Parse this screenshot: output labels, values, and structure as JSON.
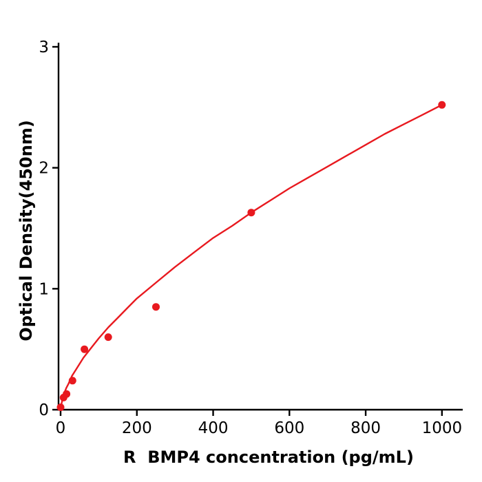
{
  "figure": {
    "background": "#ffffff"
  },
  "chart_data": {
    "type": "scatter",
    "subtype": "standard-curve-with-fit",
    "xlabel": "R  BMP4 concentration (pg/mL)",
    "ylabel": "Optical Density(450nm)",
    "xlim": [
      0,
      1040
    ],
    "ylim": [
      0,
      3
    ],
    "x_ticks": [
      0,
      200,
      400,
      600,
      800,
      1000
    ],
    "y_ticks": [
      0,
      1,
      2,
      3
    ],
    "grid": false,
    "legend": "none",
    "marker": "circle",
    "marker_radius": 5.5,
    "point_color": "#e8191f",
    "curve_color": "#e8191f",
    "axis_color": "#000000",
    "series": [
      {
        "name": "BMP4 standard points",
        "x": [
          0,
          7.8,
          15.6,
          31.25,
          62.5,
          125,
          250,
          500,
          1000
        ],
        "y": [
          0.02,
          0.1,
          0.13,
          0.24,
          0.5,
          0.6,
          0.85,
          1.63,
          2.52
        ]
      }
    ],
    "fit_curve": {
      "name": "fitted curve",
      "x": [
        0,
        5,
        10,
        15,
        20,
        30,
        40,
        50,
        60,
        80,
        100,
        125,
        150,
        175,
        200,
        250,
        300,
        350,
        400,
        450,
        500,
        550,
        600,
        650,
        700,
        750,
        800,
        850,
        900,
        950,
        1000
      ],
      "y": [
        0.01,
        0.09,
        0.14,
        0.18,
        0.21,
        0.28,
        0.33,
        0.38,
        0.43,
        0.51,
        0.59,
        0.68,
        0.76,
        0.84,
        0.92,
        1.05,
        1.18,
        1.3,
        1.42,
        1.52,
        1.63,
        1.73,
        1.83,
        1.92,
        2.01,
        2.1,
        2.19,
        2.28,
        2.36,
        2.44,
        2.52
      ]
    }
  }
}
